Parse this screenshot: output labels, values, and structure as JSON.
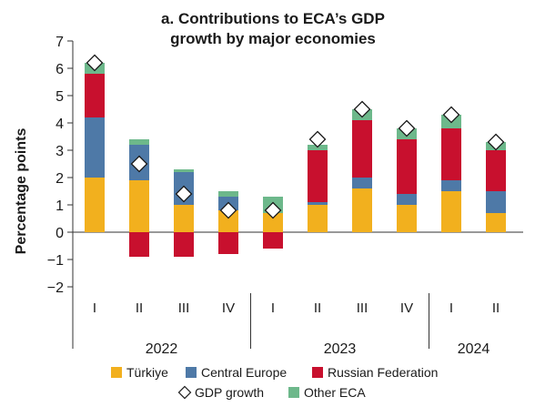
{
  "chart_data": {
    "type": "bar",
    "stacked": true,
    "title_line1": "a. Contributions to ECA’s GDP",
    "title_line2": "growth by major economies",
    "ylabel": "Percentage points",
    "ylim": [
      -2,
      7
    ],
    "yticks": [
      "7",
      "6",
      "5",
      "4",
      "3",
      "2",
      "1",
      "0",
      "−1",
      "−2"
    ],
    "categories": [
      "I",
      "II",
      "III",
      "IV",
      "I",
      "II",
      "III",
      "IV",
      "I",
      "II"
    ],
    "groups": [
      {
        "label": "2022",
        "start": 0,
        "end": 3
      },
      {
        "label": "2023",
        "start": 4,
        "end": 7
      },
      {
        "label": "2024",
        "start": 8,
        "end": 9
      }
    ],
    "series": [
      {
        "name": "Türkiye",
        "color": "#f2b01e",
        "values": [
          2.0,
          1.9,
          1.0,
          0.8,
          0.7,
          1.0,
          1.6,
          1.0,
          1.5,
          0.7
        ]
      },
      {
        "name": "Central Europe",
        "color": "#4e79a7",
        "values": [
          2.2,
          1.3,
          1.2,
          0.5,
          0.0,
          0.1,
          0.4,
          0.4,
          0.4,
          0.8
        ]
      },
      {
        "name": "Russian Federation",
        "color": "#c8102e",
        "values": [
          1.6,
          -0.9,
          -0.9,
          -0.8,
          -0.6,
          1.9,
          2.1,
          2.0,
          1.9,
          1.5
        ]
      },
      {
        "name": "Other ECA",
        "color": "#6db88b",
        "values": [
          0.4,
          0.2,
          0.1,
          0.2,
          0.6,
          0.2,
          0.4,
          0.4,
          0.5,
          0.3
        ]
      }
    ],
    "line_series": {
      "name": "GDP growth",
      "values": [
        6.2,
        2.5,
        1.4,
        0.8,
        0.8,
        3.4,
        4.5,
        3.8,
        4.3,
        3.3
      ]
    },
    "legend_rows": [
      [
        "Türkiye",
        "Central Europe",
        "Russian Federation"
      ],
      [
        "GDP growth",
        "Other ECA"
      ]
    ],
    "legend_position": "bottom"
  }
}
